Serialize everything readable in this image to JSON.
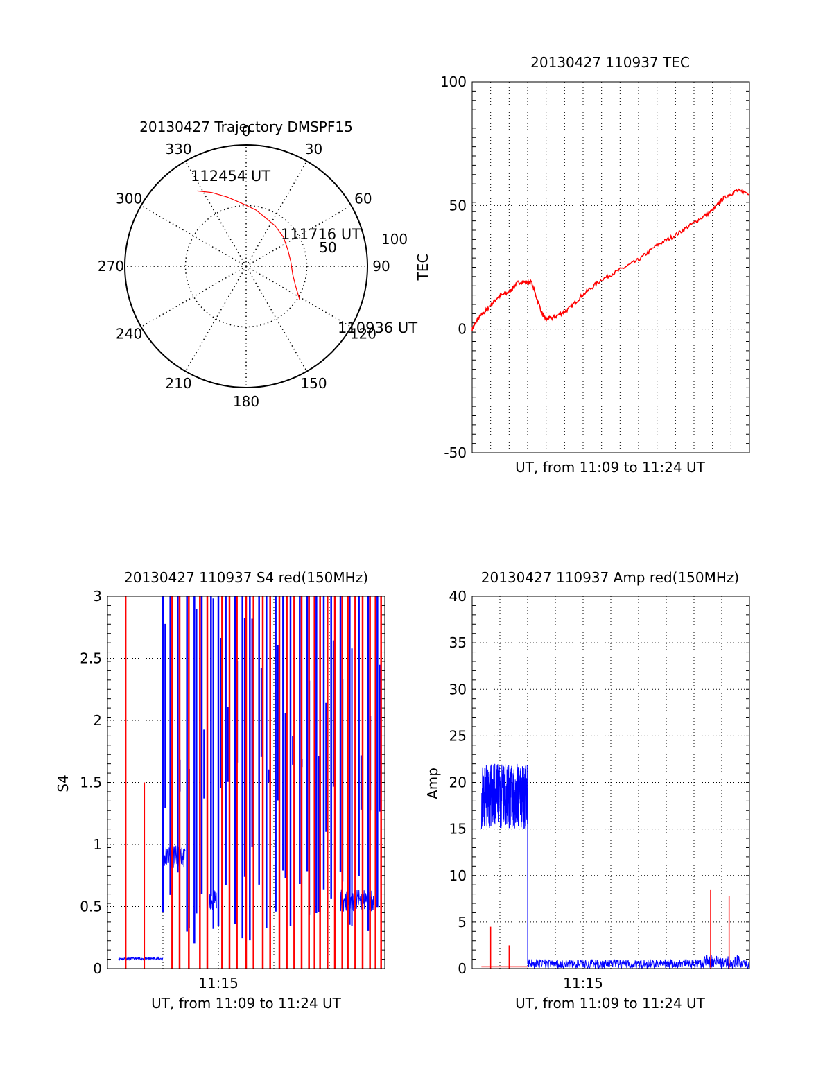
{
  "chart_data": [
    {
      "type": "polar",
      "title": "20130427 Trajectory DMSPF15",
      "angle_labels": [
        "0",
        "30",
        "60",
        "90",
        "120",
        "150",
        "180",
        "210",
        "240",
        "270",
        "300",
        "330"
      ],
      "radial_labels": [
        "50",
        "100"
      ],
      "annotations": [
        "112454 UT",
        "111716 UT",
        "110936 UT"
      ],
      "trajectory": {
        "az": [
          327,
          335,
          345,
          356,
          10,
          22,
          36,
          52,
          68,
          84,
          100,
          112,
          122
        ],
        "r": [
          74,
          67,
          59,
          52,
          47,
          43,
          41,
          39,
          37,
          37,
          39,
          44,
          52
        ]
      },
      "grid": true
    },
    {
      "type": "line",
      "title": "20130427 110937 TEC",
      "xlabel": "UT, from 11:09 to 11:24 UT",
      "ylabel": "TEC",
      "xlim": [
        0,
        15
      ],
      "ylim": [
        -50,
        100
      ],
      "yticks": [
        "-50",
        "0",
        "50",
        "100"
      ],
      "grid": true,
      "series": [
        {
          "color": "#ff0000",
          "x": [
            0,
            0.3,
            0.8,
            1.4,
            2.0,
            2.5,
            3.2,
            3.8,
            4.0,
            4.5,
            5.2,
            6.0,
            7.0,
            8.0,
            9.0,
            10.0,
            11.0,
            12.0,
            13.0,
            13.6,
            14.3,
            15.0
          ],
          "y": [
            0,
            4,
            8,
            13,
            15,
            19,
            19,
            6,
            4,
            5,
            8,
            14,
            20,
            24,
            28,
            34,
            38,
            43,
            48,
            53,
            56,
            55
          ]
        }
      ]
    },
    {
      "type": "line",
      "title": "20130427 110937 S4 red(150MHz)",
      "xlabel": "UT, from 11:09 to 11:24 UT",
      "ylabel": "S4",
      "xlim": [
        0,
        15
      ],
      "ylim": [
        0,
        3
      ],
      "xticks": [
        "11:15"
      ],
      "yticks": [
        "0",
        "0.5",
        "1",
        "1.5",
        "2",
        "2.5",
        "3"
      ],
      "grid": true,
      "series": [
        {
          "color": "#0000ff",
          "segments": [
            {
              "x": [
                0.6,
                3.0
              ],
              "level": 0.08
            },
            {
              "x": [
                3.0,
                4.2
              ],
              "level": 0.9
            },
            {
              "x": [
                5.5,
                5.9
              ],
              "level": 0.55
            },
            {
              "x": [
                12.6,
                14.4
              ],
              "level": 0.55
            }
          ],
          "spikes_x": [
            3.0,
            3.4,
            3.8,
            4.3,
            4.7,
            5.1,
            5.6,
            6.0,
            6.4,
            6.9,
            7.3,
            7.7,
            8.2,
            8.6,
            9.1,
            9.5,
            9.9,
            10.4,
            10.8,
            11.3,
            11.7,
            12.1,
            12.6,
            13.1,
            13.6,
            14.1,
            14.6
          ],
          "spikes_max": 3
        },
        {
          "color": "#ff0000",
          "spikes_x": [
            1.0,
            2.0,
            3.5,
            3.9,
            4.4,
            5.0,
            5.4,
            6.2,
            6.6,
            7.0,
            7.5,
            7.9,
            8.4,
            8.8,
            9.3,
            9.7,
            10.1,
            10.5,
            10.9,
            11.2,
            11.5,
            11.9,
            12.3,
            12.7,
            13.0,
            13.4,
            13.8,
            14.2,
            14.5,
            14.8
          ],
          "spikes_max": 3
        }
      ]
    },
    {
      "type": "line",
      "title": "20130427 110937 Amp red(150MHz)",
      "xlabel": "UT, from 11:09 to 11:24 UT",
      "ylabel": "Amp",
      "xlim": [
        0,
        15
      ],
      "ylim": [
        0,
        40
      ],
      "xticks": [
        "11:15"
      ],
      "yticks": [
        "0",
        "5",
        "10",
        "15",
        "20",
        "25",
        "30",
        "35",
        "40"
      ],
      "grid": true,
      "series": [
        {
          "color": "#0000ff",
          "segments": [
            {
              "x": [
                0.5,
                3.0
              ],
              "low": 15,
              "high": 22
            },
            {
              "x": [
                3.0,
                15.0
              ],
              "low": 0,
              "high": 1
            }
          ],
          "bursts": [
            {
              "x": [
                12.5,
                14.5
              ],
              "low": 0,
              "high": 1.5
            }
          ]
        },
        {
          "color": "#ff0000",
          "baseline": 0.2,
          "spikes": [
            {
              "x": 1.0,
              "y": 4.5
            },
            {
              "x": 2.0,
              "y": 2.5
            },
            {
              "x": 12.9,
              "y": 8.5
            },
            {
              "x": 13.9,
              "y": 7.8
            }
          ]
        }
      ]
    }
  ]
}
